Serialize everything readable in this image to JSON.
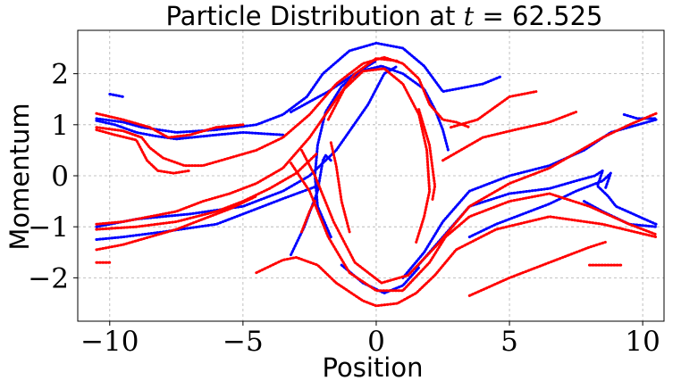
{
  "chart_data": {
    "type": "scatter",
    "title": "Particle Distribution at t = 62.525",
    "title_prefix": "Particle Distribution at ",
    "title_var": "t",
    "title_rest": " = 62.525",
    "xlabel": "Position",
    "ylabel": "Momentum",
    "xlim": [
      -11.2,
      10.8
    ],
    "ylim": [
      -2.85,
      2.85
    ],
    "xticks": [
      -10,
      -5,
      0,
      5,
      10
    ],
    "yticks": [
      -2,
      -1,
      0,
      1,
      2
    ],
    "xtick_labels": [
      "−10",
      "−5",
      "0",
      "5",
      "10"
    ],
    "ytick_labels": [
      "−2",
      "−1",
      "0",
      "1",
      "2"
    ],
    "grid": true,
    "legend": false,
    "colors": {
      "blue": "#0000ff",
      "red": "#ff0000"
    },
    "series": [
      {
        "color": "blue",
        "curves": [
          [
            [
              -10.5,
              1.12
            ],
            [
              -9.5,
              1.05
            ],
            [
              -8.8,
              0.95
            ],
            [
              -8.4,
              0.92
            ],
            [
              -7.5,
              0.85
            ],
            [
              -6.0,
              0.9
            ],
            [
              -4.5,
              1.0
            ],
            [
              -3.5,
              1.2
            ],
            [
              -2.6,
              1.55
            ],
            [
              -2.0,
              2.0
            ],
            [
              -1.0,
              2.45
            ],
            [
              0.0,
              2.6
            ],
            [
              1.0,
              2.5
            ],
            [
              1.8,
              2.15
            ],
            [
              2.5,
              1.65
            ],
            [
              3.0,
              1.7
            ],
            [
              4.0,
              1.8
            ],
            [
              4.7,
              1.95
            ]
          ],
          [
            [
              -10.5,
              1.08
            ],
            [
              -9.8,
              1.0
            ],
            [
              -9.0,
              0.85
            ],
            [
              -8.3,
              0.78
            ],
            [
              -7.5,
              0.72
            ],
            [
              -6.0,
              0.8
            ],
            [
              -5.0,
              0.85
            ],
            [
              -3.5,
              0.8
            ]
          ],
          [
            [
              -10.5,
              -1.0
            ],
            [
              -9.0,
              -0.85
            ],
            [
              -7.0,
              -0.75
            ],
            [
              -5.0,
              -0.6
            ],
            [
              -3.5,
              -0.3
            ],
            [
              -2.5,
              0.0
            ],
            [
              -1.5,
              0.5
            ],
            [
              -0.3,
              1.4
            ],
            [
              0.3,
              2.0
            ],
            [
              0.8,
              2.15
            ]
          ],
          [
            [
              -10.5,
              -1.25
            ],
            [
              -9.5,
              -1.2
            ],
            [
              -8.0,
              -1.1
            ],
            [
              -6.0,
              -0.95
            ],
            [
              -5.0,
              -0.75
            ],
            [
              -3.5,
              -0.45
            ],
            [
              -2.2,
              -0.2
            ]
          ],
          [
            [
              -3.2,
              -1.55
            ],
            [
              -2.7,
              -1.0
            ],
            [
              -2.2,
              -0.3
            ],
            [
              -2.0,
              0.3
            ],
            [
              -1.9,
              0.4
            ],
            [
              -1.7,
              0.3
            ]
          ],
          [
            [
              -1.7,
              -1.2
            ],
            [
              -2.2,
              -0.6
            ],
            [
              -2.3,
              0.0
            ],
            [
              -2.2,
              0.6
            ],
            [
              -1.9,
              1.25
            ],
            [
              -1.3,
              1.75
            ],
            [
              -0.6,
              2.05
            ],
            [
              0.2,
              2.15
            ],
            [
              1.0,
              2.0
            ],
            [
              1.8,
              1.7
            ],
            [
              2.2,
              1.3
            ],
            [
              2.5,
              0.9
            ],
            [
              2.7,
              0.5
            ]
          ],
          [
            [
              -1.3,
              -1.75
            ],
            [
              -0.5,
              -2.1
            ],
            [
              0.3,
              -2.3
            ],
            [
              1.0,
              -2.15
            ],
            [
              1.6,
              -1.8
            ]
          ],
          [
            [
              -3.2,
              1.25
            ],
            [
              -1.8,
              1.65
            ],
            [
              -0.8,
              2.0
            ],
            [
              0.0,
              2.25
            ]
          ],
          [
            [
              1.0,
              -2.0
            ],
            [
              1.8,
              -1.5
            ],
            [
              2.5,
              -0.9
            ],
            [
              3.5,
              -0.3
            ],
            [
              5.0,
              0.0
            ],
            [
              6.5,
              0.2
            ],
            [
              7.8,
              0.5
            ],
            [
              8.8,
              0.85
            ],
            [
              10.5,
              1.1
            ]
          ],
          [
            [
              1.5,
              -1.8
            ],
            [
              2.5,
              -1.2
            ],
            [
              3.5,
              -0.6
            ],
            [
              5.0,
              -0.35
            ],
            [
              6.5,
              -0.25
            ],
            [
              7.5,
              -0.1
            ],
            [
              8.2,
              0.0
            ],
            [
              8.5,
              0.1
            ],
            [
              8.3,
              -0.2
            ],
            [
              8.7,
              -0.4
            ],
            [
              9.0,
              -0.6
            ],
            [
              10.5,
              -0.95
            ]
          ],
          [
            [
              3.5,
              -1.2
            ],
            [
              4.5,
              -0.95
            ],
            [
              5.5,
              -0.75
            ],
            [
              6.5,
              -0.55
            ],
            [
              7.5,
              -0.3
            ],
            [
              8.5,
              -0.1
            ],
            [
              8.8,
              0.05
            ],
            [
              8.6,
              -0.25
            ]
          ],
          [
            [
              7.8,
              -0.5
            ],
            [
              8.5,
              -0.7
            ],
            [
              9.5,
              -0.95
            ],
            [
              10.5,
              -1.0
            ]
          ],
          [
            [
              9.3,
              1.2
            ],
            [
              9.8,
              1.12
            ],
            [
              10.5,
              1.12
            ]
          ],
          [
            [
              -10.0,
              1.6
            ],
            [
              -9.5,
              1.55
            ]
          ]
        ]
      },
      {
        "color": "red",
        "curves": [
          [
            [
              -10.5,
              1.22
            ],
            [
              -9.5,
              1.1
            ],
            [
              -8.5,
              0.95
            ],
            [
              -7.8,
              0.75
            ],
            [
              -7.0,
              0.8
            ],
            [
              -6.0,
              0.95
            ],
            [
              -5.0,
              1.0
            ]
          ],
          [
            [
              -10.5,
              0.95
            ],
            [
              -9.5,
              0.88
            ],
            [
              -8.8,
              0.75
            ],
            [
              -8.5,
              0.55
            ],
            [
              -8.0,
              0.35
            ],
            [
              -7.2,
              0.2
            ],
            [
              -6.5,
              0.2
            ],
            [
              -5.5,
              0.35
            ],
            [
              -4.5,
              0.5
            ],
            [
              -3.5,
              0.75
            ],
            [
              -2.5,
              1.2
            ],
            [
              -1.5,
              1.8
            ],
            [
              -0.5,
              2.2
            ],
            [
              0.3,
              2.32
            ],
            [
              1.0,
              2.2
            ],
            [
              1.6,
              1.9
            ],
            [
              2.0,
              1.4
            ],
            [
              2.5,
              1.1
            ],
            [
              3.0,
              1.05
            ],
            [
              3.5,
              0.95
            ]
          ],
          [
            [
              -10.5,
              0.9
            ],
            [
              -9.8,
              0.8
            ],
            [
              -9.0,
              0.7
            ],
            [
              -8.6,
              0.3
            ],
            [
              -8.2,
              0.1
            ],
            [
              -7.6,
              0.05
            ],
            [
              -7.0,
              0.1
            ]
          ],
          [
            [
              -10.5,
              -0.95
            ],
            [
              -9.5,
              -0.9
            ],
            [
              -8.5,
              -0.8
            ],
            [
              -7.5,
              -0.7
            ],
            [
              -6.5,
              -0.5
            ],
            [
              -5.5,
              -0.35
            ],
            [
              -4.5,
              -0.15
            ],
            [
              -3.5,
              0.15
            ],
            [
              -2.5,
              0.75
            ],
            [
              -1.5,
              1.5
            ],
            [
              -0.8,
              2.0
            ],
            [
              0.0,
              2.3
            ],
            [
              0.8,
              2.25
            ]
          ],
          [
            [
              -10.5,
              -1.05
            ],
            [
              -9.0,
              -1.0
            ],
            [
              -7.5,
              -0.9
            ],
            [
              -6.0,
              -0.7
            ],
            [
              -5.0,
              -0.5
            ],
            [
              -4.0,
              -0.25
            ],
            [
              -3.0,
              0.05
            ],
            [
              -2.2,
              0.45
            ]
          ],
          [
            [
              -10.5,
              -1.45
            ],
            [
              -9.5,
              -1.35
            ],
            [
              -8.5,
              -1.2
            ],
            [
              -7.5,
              -1.05
            ],
            [
              -6.5,
              -0.85
            ],
            [
              -5.5,
              -0.65
            ],
            [
              -4.5,
              -0.4
            ]
          ],
          [
            [
              -10.5,
              -1.7
            ],
            [
              -10.0,
              -1.7
            ]
          ],
          [
            [
              -4.5,
              -1.9
            ],
            [
              -3.5,
              -1.65
            ],
            [
              -3.0,
              -1.6
            ],
            [
              -2.2,
              -1.75
            ],
            [
              -1.5,
              -2.1
            ],
            [
              -0.5,
              -2.45
            ],
            [
              0.0,
              -2.55
            ],
            [
              0.8,
              -2.5
            ],
            [
              1.5,
              -2.3
            ],
            [
              2.2,
              -1.95
            ],
            [
              3.0,
              -1.45
            ],
            [
              4.5,
              -1.05
            ],
            [
              6.5,
              -0.8
            ],
            [
              8.5,
              -0.95
            ],
            [
              10.5,
              -1.2
            ]
          ],
          [
            [
              -3.2,
              0.25
            ],
            [
              -2.5,
              -0.3
            ],
            [
              -1.8,
              -1.2
            ],
            [
              -1.0,
              -1.9
            ],
            [
              0.0,
              -2.25
            ],
            [
              1.0,
              -2.25
            ],
            [
              2.0,
              -1.7
            ],
            [
              2.6,
              -1.2
            ],
            [
              3.5,
              -0.8
            ],
            [
              5.0,
              -0.5
            ],
            [
              6.5,
              -0.35
            ],
            [
              8.0,
              -0.6
            ],
            [
              9.5,
              -0.95
            ],
            [
              10.5,
              -1.15
            ]
          ],
          [
            [
              -2.8,
              0.5
            ],
            [
              -2.3,
              0.0
            ],
            [
              -1.6,
              -0.9
            ],
            [
              -0.8,
              -1.7
            ],
            [
              0.2,
              -2.1
            ],
            [
              1.2,
              -1.95
            ],
            [
              2.3,
              -1.35
            ],
            [
              3.5,
              -0.6
            ],
            [
              5.0,
              -0.15
            ],
            [
              6.5,
              0.15
            ],
            [
              7.5,
              0.45
            ],
            [
              8.5,
              0.75
            ],
            [
              9.5,
              1.0
            ],
            [
              10.5,
              1.22
            ]
          ],
          [
            [
              -1.8,
              1.1
            ],
            [
              -1.2,
              1.7
            ],
            [
              -0.5,
              2.05
            ],
            [
              0.3,
              2.1
            ],
            [
              1.0,
              1.8
            ],
            [
              1.6,
              1.2
            ],
            [
              1.9,
              0.5
            ],
            [
              2.0,
              -0.3
            ],
            [
              1.8,
              -0.8
            ],
            [
              1.5,
              -1.3
            ]
          ],
          [
            [
              1.6,
              1.3
            ],
            [
              2.0,
              0.6
            ],
            [
              2.2,
              -0.2
            ],
            [
              2.1,
              -0.5
            ]
          ],
          [
            [
              2.5,
              0.3
            ],
            [
              4.0,
              0.75
            ],
            [
              5.2,
              0.9
            ],
            [
              6.5,
              1.05
            ],
            [
              7.5,
              1.25
            ]
          ],
          [
            [
              3.5,
              -2.35
            ],
            [
              5.0,
              -2.0
            ],
            [
              6.5,
              -1.7
            ],
            [
              7.5,
              -1.5
            ],
            [
              8.0,
              -1.4
            ],
            [
              8.6,
              -1.3
            ]
          ],
          [
            [
              2.8,
              0.95
            ],
            [
              3.8,
              1.1
            ],
            [
              5.0,
              1.55
            ],
            [
              6.0,
              1.65
            ]
          ],
          [
            [
              8.0,
              -1.75
            ],
            [
              8.5,
              -1.75
            ],
            [
              9.2,
              -1.75
            ]
          ],
          [
            [
              -2.8,
              -1.1
            ],
            [
              -2.5,
              -0.7
            ],
            [
              -2.3,
              -0.5
            ]
          ],
          [
            [
              -1.7,
              0.65
            ],
            [
              -1.5,
              0.2
            ],
            [
              -1.3,
              -0.5
            ],
            [
              -1.0,
              -1.1
            ]
          ]
        ]
      }
    ]
  }
}
